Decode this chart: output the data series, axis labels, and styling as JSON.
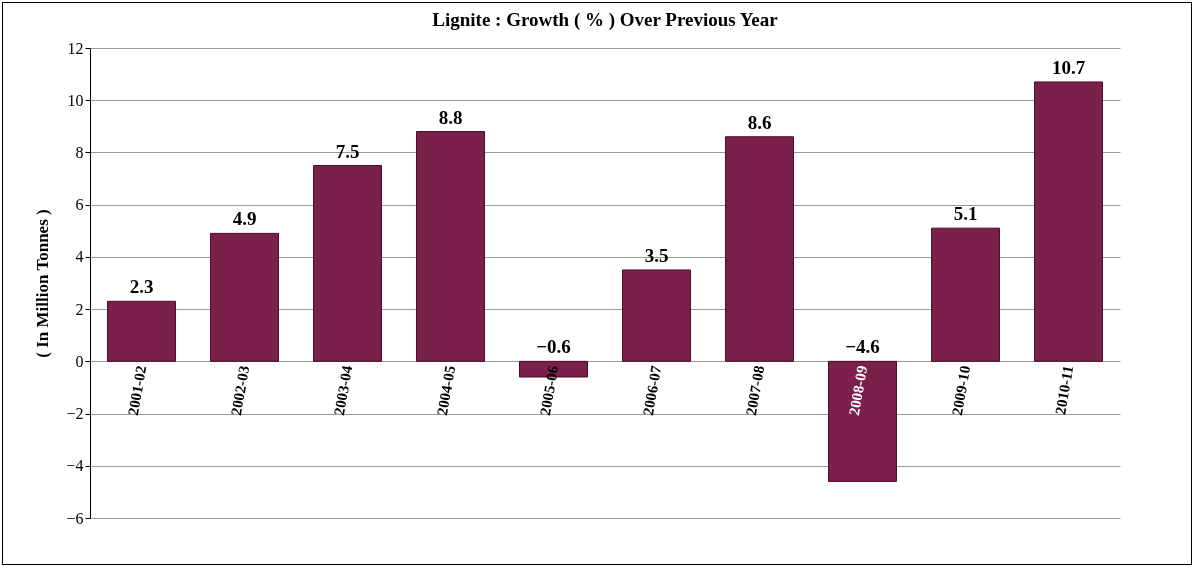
{
  "chart_data": {
    "type": "bar",
    "title": "Lignite : Growth ( % ) Over Previous Year",
    "ylabel": "( In Million Tonnes )",
    "categories": [
      "2001-02",
      "2002-03",
      "2003-04",
      "2004-05",
      "2005-06",
      "2006-07",
      "2007-08",
      "2008-09",
      "2009-10",
      "2010-11"
    ],
    "values": [
      2.3,
      4.9,
      7.5,
      8.8,
      -0.6,
      3.5,
      8.6,
      -4.6,
      5.1,
      10.7
    ],
    "color": "#7b1f4b",
    "ylim": [
      -6,
      12
    ],
    "yticks": [
      -6,
      -4,
      -2,
      0,
      2,
      4,
      6,
      8,
      10,
      12
    ],
    "grid": "y",
    "data_labels": true
  }
}
